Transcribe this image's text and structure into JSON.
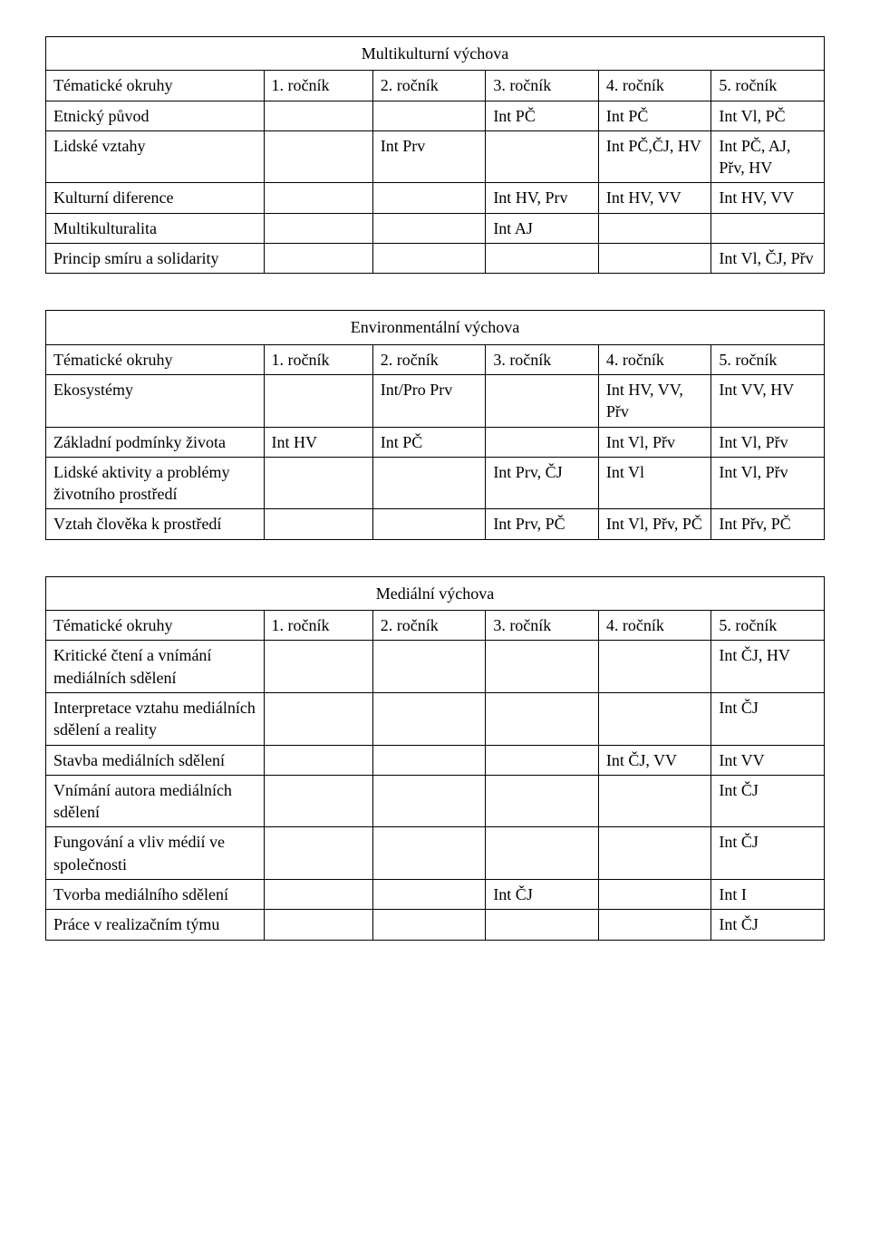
{
  "tables": [
    {
      "title": "Multikulturní výchova",
      "header_label": "Tématické okruhy",
      "columns": [
        "1. ročník",
        "2. ročník",
        "3. ročník",
        "4. ročník",
        "5. ročník"
      ],
      "rows": [
        {
          "topic": "Etnický původ",
          "c1": "",
          "c2": "",
          "c3": "Int PČ",
          "c4": "Int PČ",
          "c5": "Int Vl, PČ"
        },
        {
          "topic": "Lidské vztahy",
          "c1": "",
          "c2": "Int Prv",
          "c3": "",
          "c4": "Int PČ,ČJ, HV",
          "c5": "Int PČ, AJ, Přv, HV"
        },
        {
          "topic": "Kulturní diference",
          "c1": "",
          "c2": "",
          "c3": "Int HV, Prv",
          "c4": "Int HV, VV",
          "c5": "Int HV, VV"
        },
        {
          "topic": "Multikulturalita",
          "c1": "",
          "c2": "",
          "c3": "Int AJ",
          "c4": "",
          "c5": ""
        },
        {
          "topic": "Princip smíru a solidarity",
          "c1": "",
          "c2": "",
          "c3": "",
          "c4": "",
          "c5": "Int Vl, ČJ, Přv"
        }
      ]
    },
    {
      "title": "Environmentální výchova",
      "header_label": "Tématické okruhy",
      "columns": [
        "1. ročník",
        "2. ročník",
        "3. ročník",
        "4. ročník",
        "5. ročník"
      ],
      "rows": [
        {
          "topic": "Ekosystémy",
          "c1": "",
          "c2": "Int/Pro Prv",
          "c3": "",
          "c4": "Int HV, VV, Přv",
          "c5": "Int VV, HV"
        },
        {
          "topic": "Základní podmínky života",
          "c1": "Int HV",
          "c2": "Int  PČ",
          "c3": "",
          "c4": "Int Vl, Přv",
          "c5": "Int Vl, Přv"
        },
        {
          "topic": "Lidské aktivity a problémy životního prostředí",
          "c1": "",
          "c2": "",
          "c3": "Int Prv, ČJ",
          "c4": "Int Vl",
          "c5": "Int Vl, Přv"
        },
        {
          "topic": "Vztah člověka k prostředí",
          "c1": "",
          "c2": "",
          "c3": "Int Prv, PČ",
          "c4": "Int Vl, Přv, PČ",
          "c5": "Int Přv, PČ"
        }
      ]
    },
    {
      "title": "Mediální výchova",
      "header_label": "Tématické okruhy",
      "columns": [
        "1. ročník",
        "2. ročník",
        "3. ročník",
        "4. ročník",
        "5. ročník"
      ],
      "rows": [
        {
          "topic": "Kritické čtení a vnímání mediálních sdělení",
          "c1": "",
          "c2": "",
          "c3": "",
          "c4": "",
          "c5": "Int ČJ, HV"
        },
        {
          "topic": "Interpretace vztahu mediálních sdělení a reality",
          "c1": "",
          "c2": "",
          "c3": "",
          "c4": "",
          "c5": "Int ČJ"
        },
        {
          "topic": "Stavba mediálních sdělení",
          "c1": "",
          "c2": "",
          "c3": "",
          "c4": "Int ČJ, VV",
          "c5": "Int VV"
        },
        {
          "topic": "Vnímání autora mediálních sdělení",
          "c1": "",
          "c2": "",
          "c3": "",
          "c4": "",
          "c5": "Int ČJ"
        },
        {
          "topic": "Fungování a vliv médií ve společnosti",
          "c1": "",
          "c2": "",
          "c3": "",
          "c4": "",
          "c5": "Int ČJ"
        },
        {
          "topic": "Tvorba mediálního sdělení",
          "c1": "",
          "c2": "",
          "c3": "Int ČJ",
          "c4": "",
          "c5": "Int I"
        },
        {
          "topic": "Práce v realizačním týmu",
          "c1": "",
          "c2": "",
          "c3": "",
          "c4": "",
          "c5": "Int ČJ"
        }
      ]
    }
  ]
}
